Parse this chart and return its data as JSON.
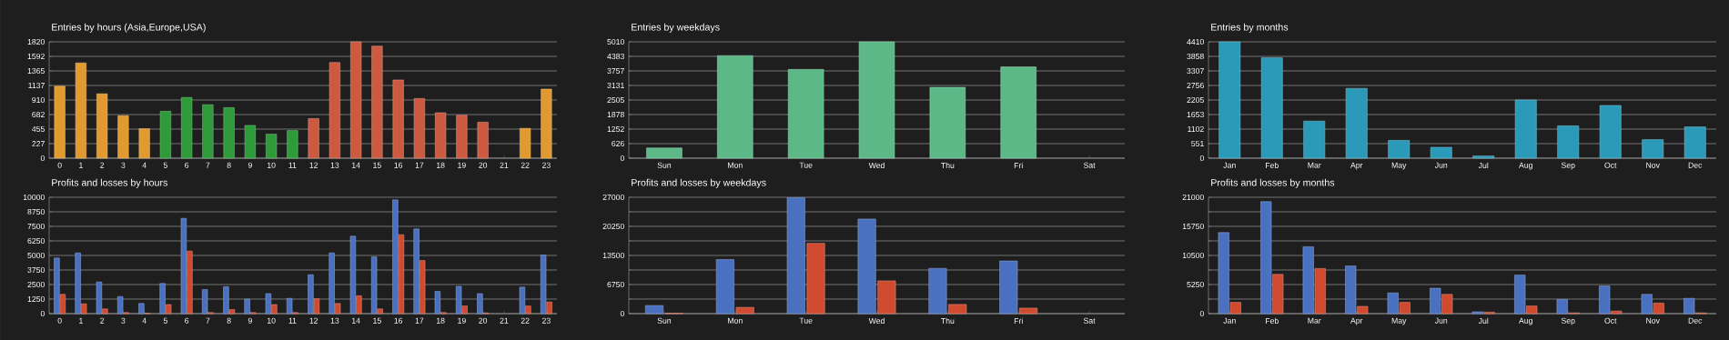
{
  "chart_data": [
    {
      "type": "bar",
      "title": "Entries by hours (Asia,Europe,USA)",
      "categories": [
        "0",
        "1",
        "2",
        "3",
        "4",
        "5",
        "6",
        "7",
        "8",
        "9",
        "10",
        "11",
        "12",
        "13",
        "14",
        "15",
        "16",
        "17",
        "18",
        "19",
        "20",
        "21",
        "22",
        "23"
      ],
      "values": [
        1126,
        1490,
        1007,
        665,
        461,
        734,
        950,
        836,
        791,
        512,
        375,
        432,
        620,
        1496,
        1820,
        1752,
        1223,
        933,
        711,
        671,
        563,
        null,
        466,
        1081
      ],
      "colors": [
        "#e09a30",
        "#e09a30",
        "#e09a30",
        "#e09a30",
        "#e09a30",
        "#2e9a3a",
        "#2e9a3a",
        "#2e9a3a",
        "#2e9a3a",
        "#2e9a3a",
        "#2e9a3a",
        "#2e9a3a",
        "#cc5a40",
        "#cc5a40",
        "#cc5a40",
        "#cc5a40",
        "#cc5a40",
        "#cc5a40",
        "#cc5a40",
        "#cc5a40",
        "#cc5a40",
        "#cc5a40",
        "#e09a30",
        "#e09a30"
      ],
      "ylim": [
        0,
        1820
      ],
      "yticks": [
        0,
        227,
        455,
        682,
        910,
        1137,
        1365,
        1592,
        1820
      ],
      "grid": "y"
    },
    {
      "type": "bar",
      "title": "Entries by weekdays",
      "categories": [
        "Sun",
        "Mon",
        "Tue",
        "Wed",
        "Thu",
        "Fri",
        "Sat"
      ],
      "values": [
        439,
        4415,
        3821,
        5010,
        3053,
        3930,
        null
      ],
      "color": "#5cb887",
      "ylim": [
        0,
        5010
      ],
      "yticks": [
        0,
        626,
        1252,
        1878,
        2505,
        3131,
        3757,
        4383,
        5010
      ],
      "grid": "y"
    },
    {
      "type": "bar",
      "title": "Entries by months",
      "categories": [
        "Jan",
        "Feb",
        "Mar",
        "Apr",
        "May",
        "Jun",
        "Jul",
        "Aug",
        "Sep",
        "Oct",
        "Nov",
        "Dec"
      ],
      "values": [
        4410,
        3803,
        1405,
        2646,
        675,
        413,
        83,
        2205,
        1226,
        1998,
        703,
        1185
      ],
      "color": "#2a9ab8",
      "ylim": [
        0,
        4410
      ],
      "yticks": [
        0,
        551,
        1102,
        1653,
        2205,
        2756,
        3307,
        3858,
        4410
      ],
      "grid": "y"
    },
    {
      "type": "bar",
      "title": "Profits and losses by hours",
      "categories": [
        "0",
        "1",
        "2",
        "3",
        "4",
        "5",
        "6",
        "7",
        "8",
        "9",
        "10",
        "11",
        "12",
        "13",
        "14",
        "15",
        "16",
        "17",
        "18",
        "19",
        "20",
        "21",
        "22",
        "23"
      ],
      "series": [
        {
          "color": "#4a70c0",
          "values": [
            4781,
            5219,
            2719,
            1469,
            875,
            2594,
            8188,
            2063,
            2313,
            1250,
            1719,
            1313,
            3344,
            5219,
            6656,
            4875,
            9781,
            7281,
            1906,
            2344,
            1719,
            null,
            2281,
            5031
          ]
        },
        {
          "color": "#d04a30",
          "values": [
            1656,
            844,
            406,
            94,
            31,
            781,
            5375,
            94,
            344,
            94,
            781,
            94,
            1281,
            875,
            1531,
            406,
            6781,
            4563,
            94,
            656,
            63,
            null,
            656,
            1000
          ]
        }
      ],
      "ylim": [
        0,
        10000
      ],
      "yticks": [
        0,
        1250,
        2500,
        3750,
        5000,
        6250,
        7500,
        8750,
        10000
      ],
      "grid": "y"
    },
    {
      "type": "bar",
      "title": "Profits and losses by weekdays",
      "categories": [
        "Sun",
        "Mon",
        "Tue",
        "Wed",
        "Thu",
        "Fri",
        "Sat"
      ],
      "series": [
        {
          "color": "#4a70c0",
          "values": [
            1879,
            12555,
            26900,
            21950,
            10505,
            12213,
            null
          ]
        },
        {
          "color": "#d04a30",
          "values": [
            85,
            1452,
            16313,
            7601,
            2135,
            1281,
            null
          ]
        }
      ],
      "ylim": [
        0,
        27000
      ],
      "yticks": [
        0,
        {
          "value": 3375,
          "label": null
        },
        6750,
        {
          "value": 10125,
          "label": null
        },
        13500,
        {
          "value": 16875,
          "label": null
        },
        20250,
        {
          "value": 23625,
          "label": null
        },
        27000
      ],
      "grid": "y"
    },
    {
      "type": "bar",
      "title": "Profits and losses by months",
      "categories": [
        "Jan",
        "Feb",
        "Mar",
        "Apr",
        "May",
        "Jun",
        "Jul",
        "Aug",
        "Sep",
        "Oct",
        "Nov",
        "Dec"
      ],
      "series": [
        {
          "color": "#4a70c0",
          "values": [
            14634,
            20213,
            12075,
            8597,
            3741,
            4594,
            328,
            6956,
            2559,
            4988,
            3478,
            2756
          ]
        },
        {
          "color": "#d04a30",
          "values": [
            2034,
            7088,
            8138,
            1313,
            2034,
            3478,
            263,
            1378,
            131,
            459,
            1903,
            131
          ]
        }
      ],
      "ylim": [
        0,
        21000
      ],
      "yticks": [
        0,
        {
          "value": 2625,
          "label": null
        },
        5250,
        {
          "value": 7875,
          "label": null
        },
        10500,
        {
          "value": 13125,
          "label": null
        },
        15750,
        {
          "value": 18375,
          "label": null
        },
        21000
      ],
      "grid": "y"
    }
  ]
}
